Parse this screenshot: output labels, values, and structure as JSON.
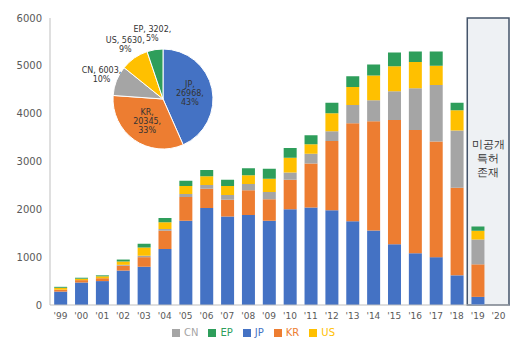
{
  "chart_data": [
    {
      "type": "bar",
      "stacked": true,
      "grid": false,
      "legend": "bottom",
      "categories": [
        "'99",
        "'00",
        "'01",
        "'02",
        "'03",
        "'04",
        "'05",
        "'06",
        "'07",
        "'08",
        "'09",
        "'10",
        "'11",
        "'12",
        "'13",
        "'14",
        "'15",
        "'16",
        "'17",
        "'18",
        "'19",
        "'20"
      ],
      "series": [
        {
          "name": "JP",
          "color": "#4472C4",
          "values": [
            280,
            470,
            500,
            720,
            800,
            1170,
            1760,
            2030,
            1850,
            1880,
            1760,
            2000,
            2040,
            1980,
            1750,
            1560,
            1270,
            1080,
            1000,
            620,
            170,
            0
          ]
        },
        {
          "name": "KR",
          "color": "#ED7D31",
          "values": [
            40,
            50,
            60,
            100,
            200,
            380,
            500,
            400,
            350,
            520,
            450,
            620,
            920,
            1450,
            2050,
            2280,
            2600,
            2580,
            2420,
            1830,
            680,
            0
          ]
        },
        {
          "name": "CN",
          "color": "#A5A5A5",
          "values": [
            0,
            0,
            0,
            20,
            30,
            40,
            60,
            80,
            100,
            130,
            150,
            150,
            200,
            200,
            380,
            440,
            600,
            870,
            1180,
            1200,
            520,
            0
          ]
        },
        {
          "name": "US",
          "color": "#FFC000",
          "values": [
            40,
            30,
            40,
            70,
            170,
            140,
            170,
            180,
            190,
            180,
            280,
            310,
            200,
            380,
            380,
            520,
            520,
            550,
            400,
            420,
            180,
            0
          ]
        },
        {
          "name": "EP",
          "color": "#2E9E5B",
          "values": [
            20,
            20,
            20,
            40,
            80,
            90,
            110,
            130,
            130,
            150,
            210,
            200,
            190,
            220,
            220,
            230,
            290,
            220,
            300,
            160,
            90,
            0
          ]
        }
      ],
      "ylim": [
        0,
        6000
      ],
      "yticks": [
        0,
        1000,
        2000,
        3000,
        4000,
        5000,
        6000
      ],
      "annotations": [
        {
          "text": "미공개 특허 존재",
          "x_from": "'19",
          "x_to": "'20"
        }
      ]
    },
    {
      "type": "pie",
      "categories": [
        "JP",
        "KR",
        "CN",
        "US",
        "EP"
      ],
      "values": [
        26968,
        20345,
        6003,
        5630,
        3202
      ],
      "value_labels": [
        "JP, 26968, 43%",
        "KR, 20345, 33%",
        "CN, 6003, 10%",
        "US, 5630, 9%",
        "EP, 3202, 5%"
      ],
      "colors": [
        "#4472C4",
        "#ED7D31",
        "#A5A5A5",
        "#FFC000",
        "#2E9E5B"
      ]
    }
  ]
}
